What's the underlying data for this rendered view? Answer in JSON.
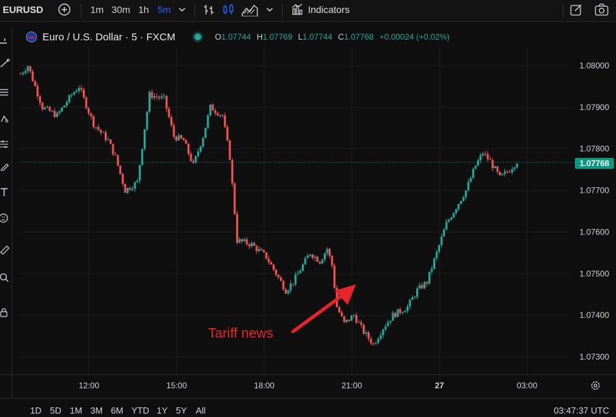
{
  "toolbar": {
    "symbol": "EURUSD",
    "intervals": [
      "1m",
      "30m",
      "1h",
      "5m"
    ],
    "active_interval": "5m",
    "indicators_label": "Indicators"
  },
  "legend": {
    "title": "Euro / U.S. Dollar · 5 · FXCM",
    "o_key": "O",
    "o_val": "1.07744",
    "h_key": "H",
    "h_val": "1.07769",
    "l_key": "L",
    "l_val": "1.07744",
    "c_key": "C",
    "c_val": "1.07768",
    "change": "+0.00024 (+0.02%)"
  },
  "bottom": {
    "ranges": [
      "1D",
      "5D",
      "1M",
      "3M",
      "6M",
      "YTD",
      "1Y",
      "5Y",
      "All"
    ],
    "clock": "03:47:37 UTC"
  },
  "colors": {
    "up": "#26a69a",
    "down": "#ef5350",
    "annotation": "#e5242b",
    "price_tag": "#089981"
  },
  "chart_data": {
    "type": "candlestick",
    "interval": "5 minutes",
    "x_tick_labels": [
      "12:00",
      "15:00",
      "18:00",
      "21:00",
      "27",
      "03:00"
    ],
    "y_tick_labels": [
      "1.08000",
      "1.07900",
      "1.07800",
      "1.07700",
      "1.07600",
      "1.07500",
      "1.07400",
      "1.07300"
    ],
    "ylim": [
      1.0724,
      1.0806
    ],
    "last_price": "1.07768",
    "annotation": "Tariff news",
    "path_key_points": [
      [
        "10:45",
        1.0798
      ],
      [
        "11:00",
        1.08
      ],
      [
        "11:30",
        1.079
      ],
      [
        "12:00",
        1.0788
      ],
      [
        "12:30",
        1.0793
      ],
      [
        "12:45",
        1.0795
      ],
      [
        "13:15",
        1.0786
      ],
      [
        "13:45",
        1.0782
      ],
      [
        "14:00",
        1.0778
      ],
      [
        "14:20",
        1.077
      ],
      [
        "14:45",
        1.0772
      ],
      [
        "15:00",
        1.0785
      ],
      [
        "15:10",
        1.0793
      ],
      [
        "15:40",
        1.0792
      ],
      [
        "16:00",
        1.0783
      ],
      [
        "16:20",
        1.0782
      ],
      [
        "16:40",
        1.0776
      ],
      [
        "17:00",
        1.0783
      ],
      [
        "17:15",
        1.079
      ],
      [
        "17:40",
        1.0788
      ],
      [
        "17:55",
        1.0778
      ],
      [
        "18:10",
        1.0758
      ],
      [
        "18:40",
        1.0757
      ],
      [
        "19:10",
        1.0754
      ],
      [
        "19:30",
        1.075
      ],
      [
        "19:50",
        1.0746
      ],
      [
        "20:05",
        1.0748
      ],
      [
        "20:25",
        1.0752
      ],
      [
        "20:40",
        1.0755
      ],
      [
        "21:00",
        1.0753
      ],
      [
        "21:15",
        1.0756
      ],
      [
        "21:25",
        1.0752
      ],
      [
        "21:35",
        1.0742
      ],
      [
        "21:50",
        1.0738
      ],
      [
        "22:10",
        1.074
      ],
      [
        "22:30",
        1.0736
      ],
      [
        "22:50",
        1.0733
      ],
      [
        "23:10",
        1.0737
      ],
      [
        "23:30",
        1.074
      ],
      [
        "00:00",
        1.0742
      ],
      [
        "00:20",
        1.0746
      ],
      [
        "00:40",
        1.0748
      ],
      [
        "01:00",
        1.0755
      ],
      [
        "01:20",
        1.0762
      ],
      [
        "01:40",
        1.0766
      ],
      [
        "02:00",
        1.077
      ],
      [
        "02:20",
        1.0776
      ],
      [
        "02:35",
        1.0779
      ],
      [
        "02:50",
        1.0777
      ],
      [
        "03:10",
        1.0773
      ],
      [
        "03:30",
        1.0775
      ],
      [
        "03:45",
        1.0777
      ]
    ]
  }
}
